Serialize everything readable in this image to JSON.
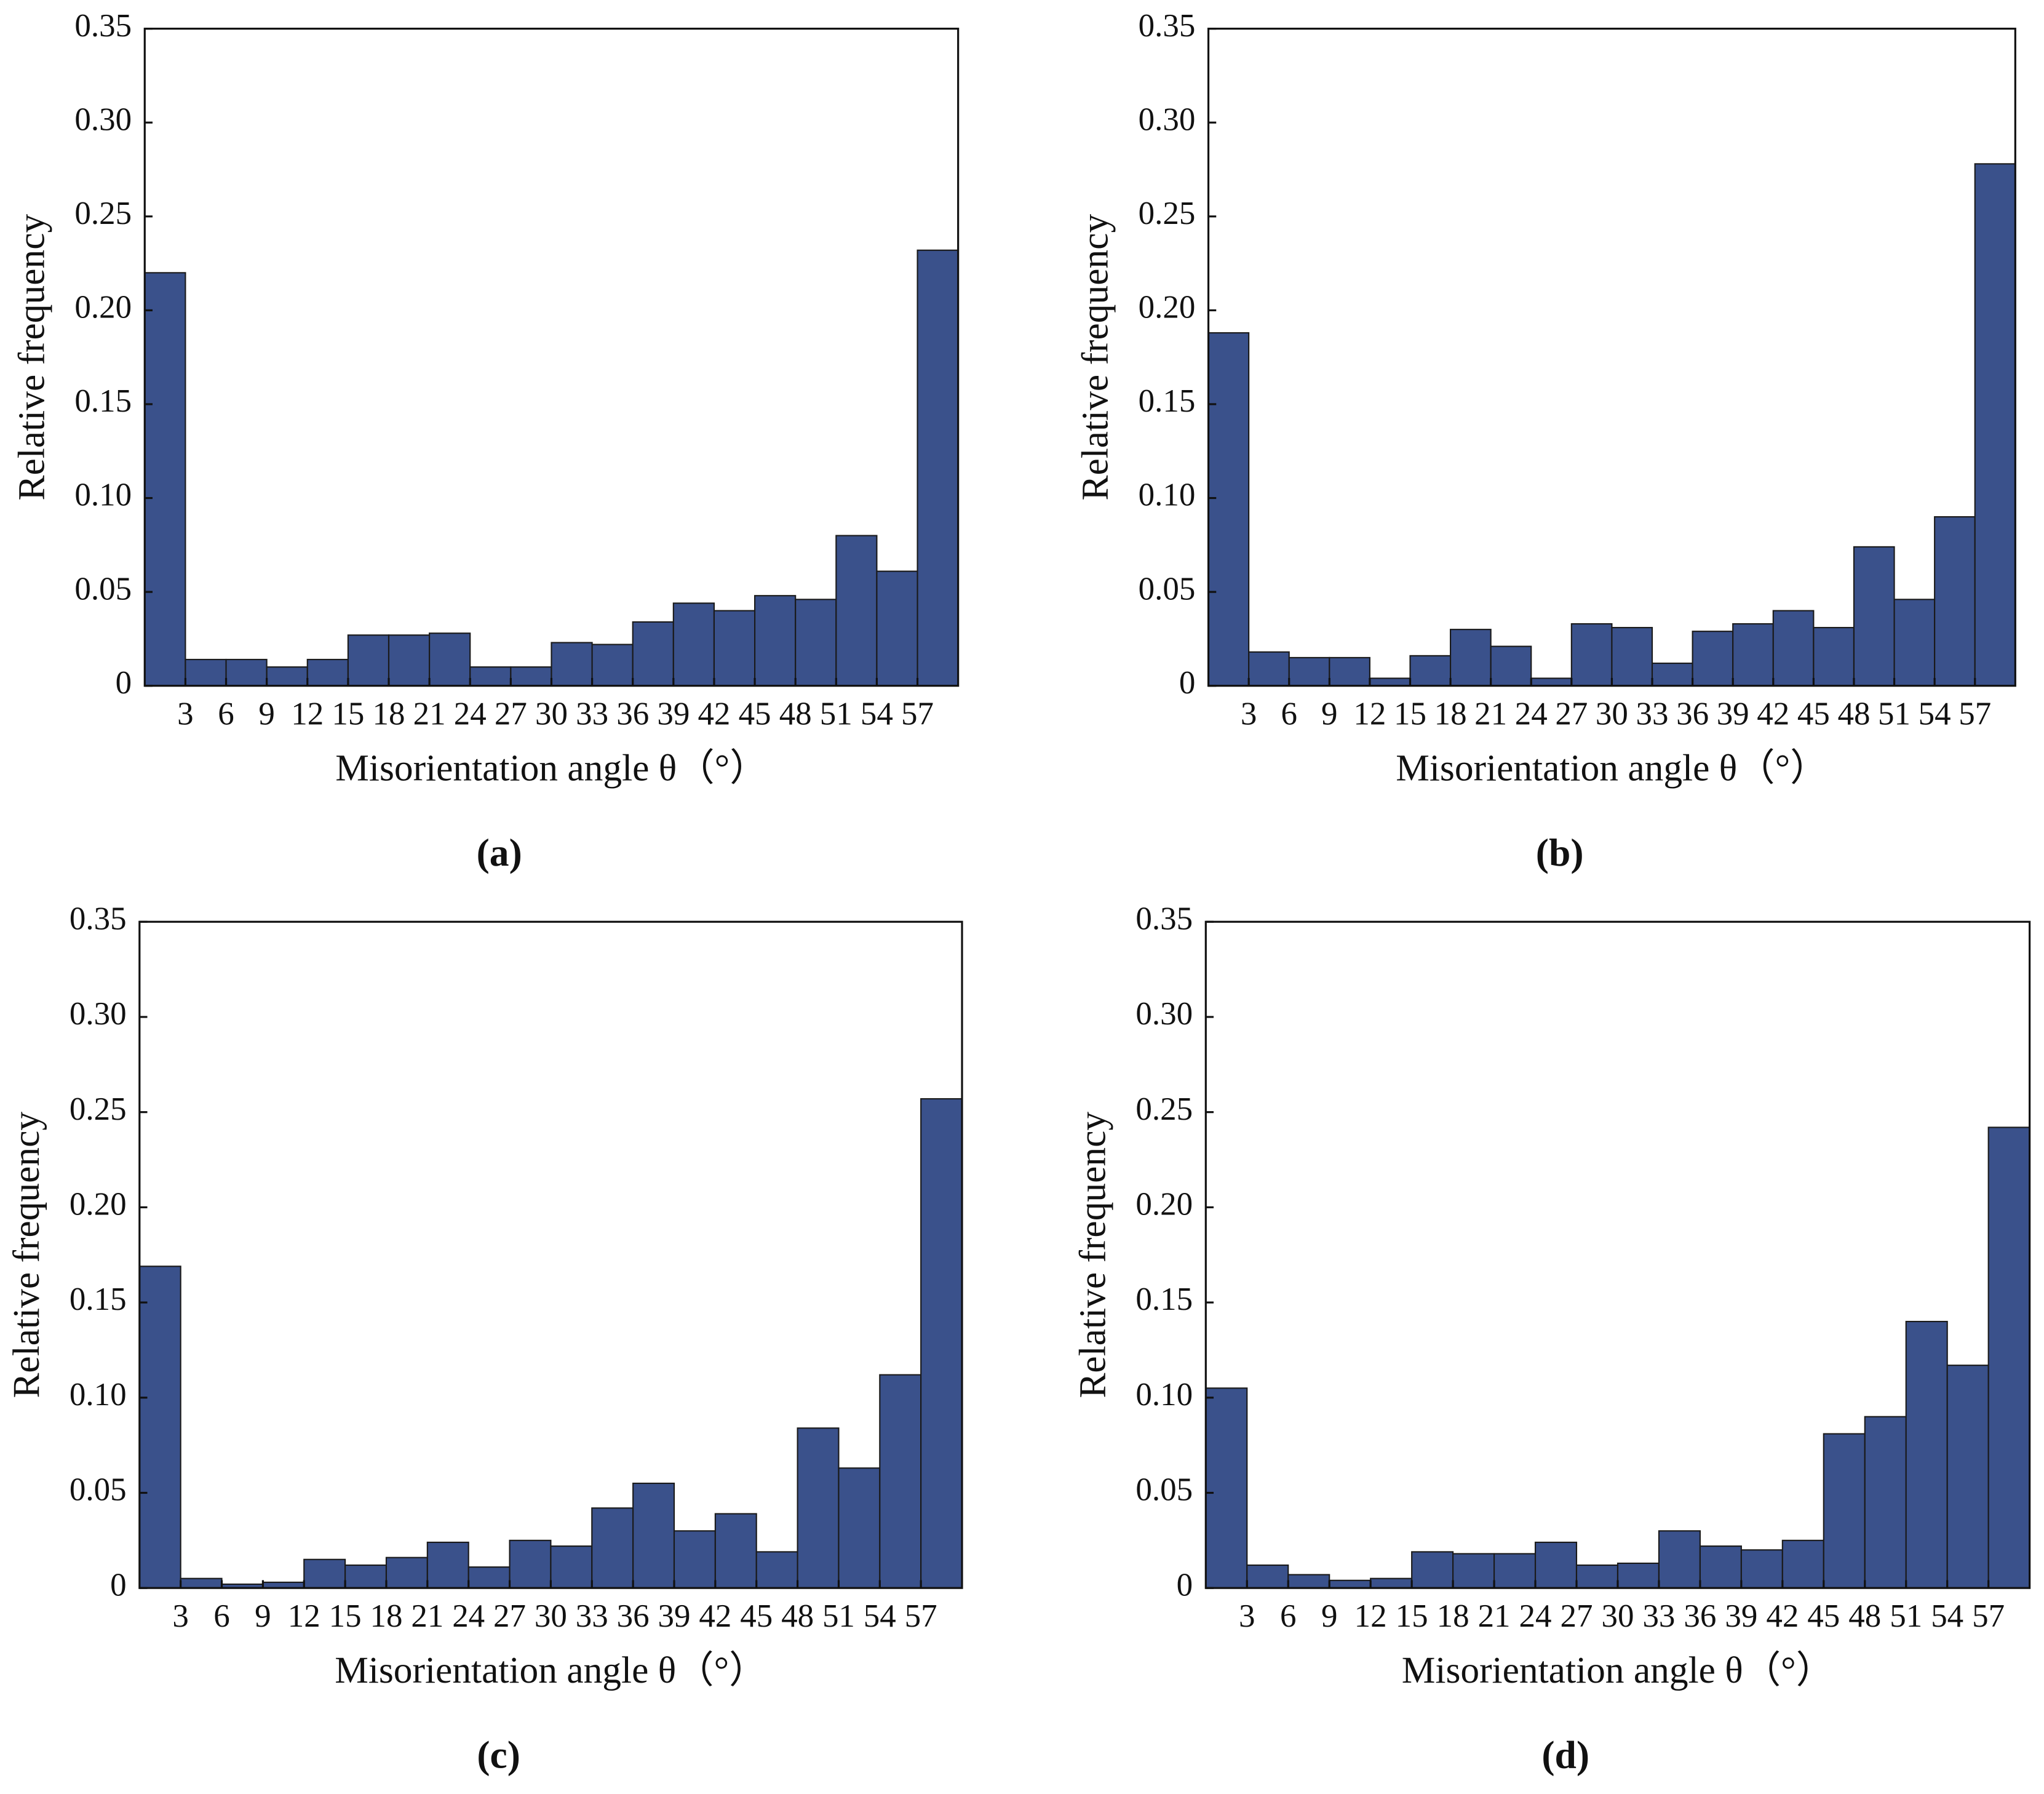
{
  "chart_data": [
    {
      "type": "histogram",
      "label": "(a)",
      "xlabel": "Misorientation angle θ（°）",
      "ylabel": "Relative frequency",
      "color": "#3a518b",
      "bins": [
        0,
        3,
        6,
        9,
        12,
        15,
        18,
        21,
        24,
        27,
        30,
        33,
        36,
        39,
        42,
        45,
        48,
        51,
        54,
        57,
        60
      ],
      "values": [
        0.22,
        0.014,
        0.014,
        0.01,
        0.014,
        0.027,
        0.027,
        0.028,
        0.01,
        0.01,
        0.023,
        0.022,
        0.034,
        0.044,
        0.04,
        0.048,
        0.046,
        0.08,
        0.061,
        0.232
      ],
      "xlim": [
        0,
        60
      ],
      "xticks": [
        3,
        6,
        9,
        12,
        15,
        18,
        21,
        24,
        27,
        30,
        33,
        36,
        39,
        42,
        45,
        48,
        51,
        54,
        57
      ],
      "ylim": [
        0,
        0.35
      ],
      "yticks": [
        0,
        0.05,
        {
          "value": 0.1,
          "label": "0.10"
        },
        0.15,
        {
          "value": 0.2,
          "label": "0.20"
        },
        0.25,
        {
          "value": 0.3,
          "label": "0.30"
        },
        0.35
      ]
    },
    {
      "type": "histogram",
      "label": "(b)",
      "xlabel": "Misorientation angle θ（°）",
      "ylabel": "Relative frequency",
      "color": "#3a518b",
      "bins": [
        0,
        3,
        6,
        9,
        12,
        15,
        18,
        21,
        24,
        27,
        30,
        33,
        36,
        39,
        42,
        45,
        48,
        51,
        54,
        57,
        60
      ],
      "values": [
        0.188,
        0.018,
        0.015,
        0.015,
        0.004,
        0.016,
        0.03,
        0.021,
        0.004,
        0.033,
        0.031,
        0.012,
        0.029,
        0.033,
        0.04,
        0.031,
        0.074,
        0.046,
        0.09,
        0.278
      ],
      "xlim": [
        0,
        60
      ],
      "xticks": [
        3,
        6,
        9,
        12,
        15,
        18,
        21,
        24,
        27,
        30,
        33,
        36,
        39,
        42,
        45,
        48,
        51,
        54,
        57
      ],
      "ylim": [
        0,
        0.35
      ],
      "yticks": [
        0,
        0.05,
        {
          "value": 0.1,
          "label": "0.10"
        },
        0.15,
        {
          "value": 0.2,
          "label": "0.20"
        },
        0.25,
        {
          "value": 0.3,
          "label": "0.30"
        },
        0.35
      ]
    },
    {
      "type": "histogram",
      "label": "(c)",
      "xlabel": "Misorientation angle θ（°）",
      "ylabel": "Relative frequency",
      "color": "#3a518b",
      "bins": [
        0,
        3,
        6,
        9,
        12,
        15,
        18,
        21,
        24,
        27,
        30,
        33,
        36,
        39,
        42,
        45,
        48,
        51,
        54,
        57,
        60
      ],
      "values": [
        0.169,
        0.005,
        0.002,
        0.003,
        0.015,
        0.012,
        0.016,
        0.024,
        0.011,
        0.025,
        0.022,
        0.042,
        0.055,
        0.03,
        0.039,
        0.019,
        0.084,
        0.063,
        0.112,
        0.257
      ],
      "xlim": [
        0,
        60
      ],
      "xticks": [
        3,
        6,
        9,
        12,
        15,
        18,
        21,
        24,
        27,
        30,
        33,
        36,
        39,
        42,
        45,
        48,
        51,
        54,
        57
      ],
      "ylim": [
        0,
        0.35
      ],
      "yticks": [
        0,
        0.05,
        {
          "value": 0.1,
          "label": "0.10"
        },
        0.15,
        {
          "value": 0.2,
          "label": "0.20"
        },
        0.25,
        {
          "value": 0.3,
          "label": "0.30"
        },
        0.35
      ]
    },
    {
      "type": "histogram",
      "label": "(d)",
      "xlabel": "Misorientation angle θ（°）",
      "ylabel": "Relative frequency",
      "color": "#3a518b",
      "bins": [
        0,
        3,
        6,
        9,
        12,
        15,
        18,
        21,
        24,
        27,
        30,
        33,
        36,
        39,
        42,
        45,
        48,
        51,
        54,
        57,
        60
      ],
      "values": [
        0.105,
        0.012,
        0.007,
        0.004,
        0.005,
        0.019,
        0.018,
        0.018,
        0.024,
        0.012,
        0.013,
        0.03,
        0.022,
        0.02,
        0.025,
        0.081,
        0.09,
        0.14,
        0.117,
        0.242
      ],
      "xlim": [
        0,
        60
      ],
      "xticks": [
        3,
        6,
        9,
        12,
        15,
        18,
        21,
        24,
        27,
        30,
        33,
        36,
        39,
        42,
        45,
        48,
        51,
        54,
        57
      ],
      "ylim": [
        0,
        0.35
      ],
      "yticks": [
        0,
        0.05,
        {
          "value": 0.1,
          "label": "0.10"
        },
        0.15,
        {
          "value": 0.2,
          "label": "0.20"
        },
        0.25,
        {
          "value": 0.3,
          "label": "0.30"
        },
        0.35
      ]
    }
  ]
}
